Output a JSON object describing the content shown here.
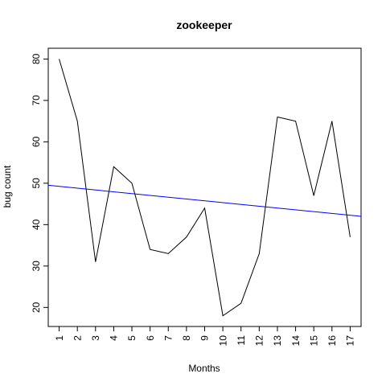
{
  "chart_data": {
    "type": "line",
    "title": "zookeeper",
    "xlabel": "Months",
    "ylabel": "bug count",
    "x": [
      1,
      2,
      3,
      4,
      5,
      6,
      7,
      8,
      9,
      10,
      11,
      12,
      13,
      14,
      15,
      16,
      17
    ],
    "series": [
      {
        "values": [
          80,
          65,
          31,
          54,
          50,
          34,
          33,
          37,
          44,
          18,
          21,
          33,
          66,
          65,
          47,
          65,
          37
        ],
        "color": "#000000"
      }
    ],
    "trend_line": {
      "start": [
        0.4,
        49.5
      ],
      "end": [
        17.6,
        42.0
      ],
      "color": "#0000ff"
    },
    "xlim": [
      0.4,
      17.6
    ],
    "ylim": [
      15.4,
      82.6
    ],
    "x_ticks": [
      1,
      2,
      3,
      4,
      5,
      6,
      7,
      8,
      9,
      10,
      11,
      12,
      13,
      14,
      15,
      16,
      17
    ],
    "y_ticks": [
      20,
      30,
      40,
      50,
      60,
      70,
      80
    ],
    "grid": false,
    "legend": "none"
  }
}
